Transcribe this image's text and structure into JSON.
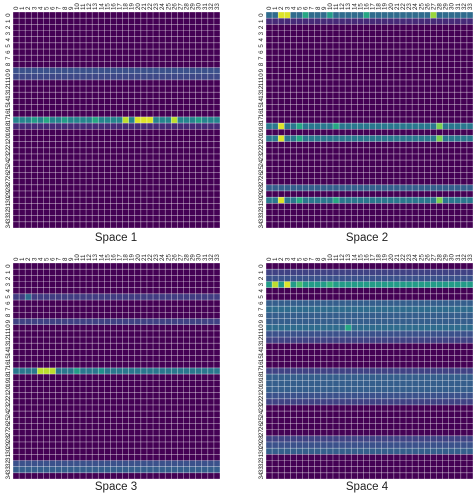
{
  "chart_data": [
    {
      "type": "heatmap",
      "title": "Space 1",
      "x_ticks": [
        "0",
        "1",
        "2",
        "3",
        "4",
        "5",
        "6",
        "7",
        "8",
        "9",
        "10",
        "11",
        "12",
        "13",
        "14",
        "15",
        "16",
        "17",
        "18",
        "19",
        "20",
        "21",
        "22",
        "23",
        "24",
        "25",
        "26",
        "27",
        "28",
        "29",
        "30",
        "31",
        "32",
        "33"
      ],
      "y_ticks": [
        "0",
        "1",
        "2",
        "3",
        "4",
        "5",
        "6",
        "7",
        "8",
        "9",
        "10",
        "11",
        "12",
        "13",
        "14",
        "15",
        "16",
        "17",
        "18",
        "19",
        "20",
        "21",
        "22",
        "23",
        "24",
        "25",
        "26",
        "27",
        "28",
        "29",
        "30",
        "31",
        "32",
        "33",
        "34"
      ],
      "colormap": "viridis",
      "value_range": [
        0,
        1
      ],
      "grid": true,
      "cells": [
        {
          "row": 9,
          "cols": [
            0,
            33
          ],
          "value": 0.25
        },
        {
          "row": 10,
          "cols": [
            0,
            33
          ],
          "value": 0.22
        },
        {
          "row": 17,
          "cols": [
            0,
            33
          ],
          "value": 0.45
        },
        {
          "row": 17,
          "cols": [
            3,
            3
          ],
          "value": 0.55
        },
        {
          "row": 17,
          "cols": [
            5,
            5
          ],
          "value": 0.6
        },
        {
          "row": 17,
          "cols": [
            8,
            8
          ],
          "value": 0.55
        },
        {
          "row": 17,
          "cols": [
            13,
            13
          ],
          "value": 0.6
        },
        {
          "row": 17,
          "cols": [
            18,
            18
          ],
          "value": 0.9
        },
        {
          "row": 17,
          "cols": [
            20,
            22
          ],
          "value": 0.95
        },
        {
          "row": 17,
          "cols": [
            26,
            26
          ],
          "value": 0.9
        },
        {
          "row": 17,
          "cols": [
            30,
            30
          ],
          "value": 0.55
        },
        {
          "row": 18,
          "cols": [
            0,
            33
          ],
          "value": 0.12
        }
      ]
    },
    {
      "type": "heatmap",
      "title": "Space 2",
      "x_ticks": [
        "0",
        "1",
        "2",
        "3",
        "4",
        "5",
        "6",
        "7",
        "8",
        "9",
        "10",
        "11",
        "12",
        "13",
        "14",
        "15",
        "16",
        "17",
        "18",
        "19",
        "20",
        "21",
        "22",
        "23",
        "24",
        "25",
        "26",
        "27",
        "28",
        "29",
        "30",
        "31",
        "32",
        "33"
      ],
      "y_ticks": [
        "0",
        "1",
        "2",
        "3",
        "4",
        "5",
        "6",
        "7",
        "8",
        "9",
        "10",
        "11",
        "12",
        "13",
        "14",
        "15",
        "16",
        "17",
        "18",
        "19",
        "20",
        "21",
        "22",
        "23",
        "24",
        "25",
        "26",
        "27",
        "28",
        "29",
        "30",
        "31",
        "32",
        "33",
        "34"
      ],
      "colormap": "viridis",
      "value_range": [
        0,
        1
      ],
      "grid": true,
      "cells": [
        {
          "row": 0,
          "cols": [
            0,
            33
          ],
          "value": 0.35
        },
        {
          "row": 0,
          "cols": [
            2,
            3
          ],
          "value": 0.95
        },
        {
          "row": 0,
          "cols": [
            6,
            6
          ],
          "value": 0.6
        },
        {
          "row": 0,
          "cols": [
            10,
            10
          ],
          "value": 0.55
        },
        {
          "row": 0,
          "cols": [
            16,
            16
          ],
          "value": 0.6
        },
        {
          "row": 0,
          "cols": [
            27,
            27
          ],
          "value": 0.85
        },
        {
          "row": 1,
          "cols": [
            0,
            33
          ],
          "value": 0.12
        },
        {
          "row": 18,
          "cols": [
            0,
            33
          ],
          "value": 0.4
        },
        {
          "row": 18,
          "cols": [
            2,
            2
          ],
          "value": 0.95
        },
        {
          "row": 18,
          "cols": [
            5,
            5
          ],
          "value": 0.6
        },
        {
          "row": 18,
          "cols": [
            11,
            11
          ],
          "value": 0.6
        },
        {
          "row": 18,
          "cols": [
            28,
            28
          ],
          "value": 0.8
        },
        {
          "row": 20,
          "cols": [
            0,
            33
          ],
          "value": 0.4
        },
        {
          "row": 20,
          "cols": [
            2,
            2
          ],
          "value": 0.95
        },
        {
          "row": 20,
          "cols": [
            5,
            5
          ],
          "value": 0.6
        },
        {
          "row": 20,
          "cols": [
            28,
            28
          ],
          "value": 0.8
        },
        {
          "row": 28,
          "cols": [
            0,
            33
          ],
          "value": 0.3
        },
        {
          "row": 30,
          "cols": [
            0,
            33
          ],
          "value": 0.4
        },
        {
          "row": 30,
          "cols": [
            2,
            2
          ],
          "value": 0.95
        },
        {
          "row": 30,
          "cols": [
            5,
            5
          ],
          "value": 0.6
        },
        {
          "row": 30,
          "cols": [
            11,
            11
          ],
          "value": 0.6
        },
        {
          "row": 30,
          "cols": [
            28,
            28
          ],
          "value": 0.8
        }
      ]
    },
    {
      "type": "heatmap",
      "title": "Space 3",
      "x_ticks": [
        "0",
        "1",
        "2",
        "3",
        "4",
        "5",
        "6",
        "7",
        "8",
        "9",
        "10",
        "11",
        "12",
        "13",
        "14",
        "15",
        "16",
        "17",
        "18",
        "19",
        "20",
        "21",
        "22",
        "23",
        "24",
        "25",
        "26",
        "27",
        "28",
        "29",
        "30",
        "31",
        "32",
        "33"
      ],
      "y_ticks": [
        "0",
        "1",
        "2",
        "3",
        "4",
        "5",
        "6",
        "7",
        "8",
        "9",
        "10",
        "11",
        "12",
        "13",
        "14",
        "15",
        "16",
        "17",
        "18",
        "19",
        "20",
        "21",
        "22",
        "23",
        "24",
        "25",
        "26",
        "27",
        "28",
        "29",
        "30",
        "31",
        "32",
        "33",
        "34"
      ],
      "colormap": "viridis",
      "value_range": [
        0,
        1
      ],
      "grid": true,
      "cells": [
        {
          "row": 5,
          "cols": [
            0,
            33
          ],
          "value": 0.18
        },
        {
          "row": 5,
          "cols": [
            2,
            2
          ],
          "value": 0.35
        },
        {
          "row": 9,
          "cols": [
            0,
            33
          ],
          "value": 0.2
        },
        {
          "row": 17,
          "cols": [
            0,
            33
          ],
          "value": 0.4
        },
        {
          "row": 17,
          "cols": [
            4,
            6
          ],
          "value": 0.9
        },
        {
          "row": 17,
          "cols": [
            10,
            10
          ],
          "value": 0.55
        },
        {
          "row": 17,
          "cols": [
            14,
            14
          ],
          "value": 0.5
        },
        {
          "row": 32,
          "cols": [
            0,
            33
          ],
          "value": 0.25
        },
        {
          "row": 33,
          "cols": [
            0,
            33
          ],
          "value": 0.3
        }
      ]
    },
    {
      "type": "heatmap",
      "title": "Space 4",
      "x_ticks": [
        "0",
        "1",
        "2",
        "3",
        "4",
        "5",
        "6",
        "7",
        "8",
        "9",
        "10",
        "11",
        "12",
        "13",
        "14",
        "15",
        "16",
        "17",
        "18",
        "19",
        "20",
        "21",
        "22",
        "23",
        "24",
        "25",
        "26",
        "27",
        "28",
        "29",
        "30",
        "31",
        "32",
        "33"
      ],
      "y_ticks": [
        "0",
        "1",
        "2",
        "3",
        "4",
        "5",
        "6",
        "7",
        "8",
        "9",
        "10",
        "11",
        "12",
        "13",
        "14",
        "15",
        "16",
        "17",
        "18",
        "19",
        "20",
        "21",
        "22",
        "23",
        "24",
        "25",
        "26",
        "27",
        "28",
        "29",
        "30",
        "31",
        "32",
        "33",
        "34"
      ],
      "colormap": "viridis",
      "value_range": [
        0,
        1
      ],
      "grid": true,
      "cells": [
        {
          "row": 1,
          "cols": [
            0,
            33
          ],
          "value": 0.2
        },
        {
          "row": 2,
          "cols": [
            0,
            33
          ],
          "value": 0.25
        },
        {
          "row": 3,
          "cols": [
            0,
            33
          ],
          "value": 0.55
        },
        {
          "row": 3,
          "cols": [
            1,
            1
          ],
          "value": 0.9
        },
        {
          "row": 3,
          "cols": [
            3,
            3
          ],
          "value": 0.95
        },
        {
          "row": 3,
          "cols": [
            5,
            5
          ],
          "value": 0.7
        },
        {
          "row": 3,
          "cols": [
            10,
            10
          ],
          "value": 0.65
        },
        {
          "row": 6,
          "cols": [
            0,
            33
          ],
          "value": 0.3
        },
        {
          "row": 7,
          "cols": [
            0,
            33
          ],
          "value": 0.35
        },
        {
          "row": 8,
          "cols": [
            0,
            33
          ],
          "value": 0.3
        },
        {
          "row": 9,
          "cols": [
            0,
            33
          ],
          "value": 0.3
        },
        {
          "row": 10,
          "cols": [
            0,
            33
          ],
          "value": 0.35
        },
        {
          "row": 10,
          "cols": [
            13,
            13
          ],
          "value": 0.6
        },
        {
          "row": 11,
          "cols": [
            0,
            33
          ],
          "value": 0.25
        },
        {
          "row": 12,
          "cols": [
            0,
            33
          ],
          "value": 0.2
        },
        {
          "row": 17,
          "cols": [
            0,
            33
          ],
          "value": 0.2
        },
        {
          "row": 18,
          "cols": [
            0,
            33
          ],
          "value": 0.3
        },
        {
          "row": 19,
          "cols": [
            0,
            33
          ],
          "value": 0.3
        },
        {
          "row": 20,
          "cols": [
            0,
            33
          ],
          "value": 0.3
        },
        {
          "row": 21,
          "cols": [
            0,
            33
          ],
          "value": 0.25
        },
        {
          "row": 22,
          "cols": [
            0,
            33
          ],
          "value": 0.2
        },
        {
          "row": 28,
          "cols": [
            0,
            33
          ],
          "value": 0.2
        },
        {
          "row": 29,
          "cols": [
            0,
            33
          ],
          "value": 0.25
        },
        {
          "row": 30,
          "cols": [
            0,
            33
          ],
          "value": 0.3
        }
      ]
    }
  ]
}
